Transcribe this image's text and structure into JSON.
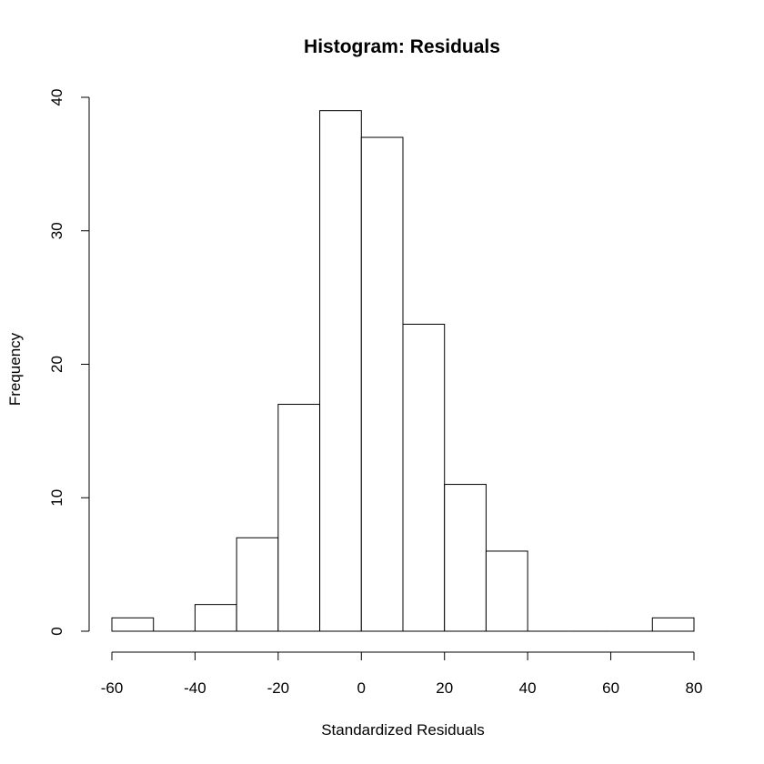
{
  "chart_data": {
    "type": "bar",
    "title": "Histogram: Residuals",
    "xlabel": "Standardized Residuals",
    "ylabel": "Frequency",
    "bins": [
      {
        "start": -60,
        "end": -50,
        "count": 1
      },
      {
        "start": -50,
        "end": -40,
        "count": 0
      },
      {
        "start": -40,
        "end": -30,
        "count": 2
      },
      {
        "start": -30,
        "end": -20,
        "count": 7
      },
      {
        "start": -20,
        "end": -10,
        "count": 17
      },
      {
        "start": -10,
        "end": 0,
        "count": 39
      },
      {
        "start": 0,
        "end": 10,
        "count": 37
      },
      {
        "start": 10,
        "end": 20,
        "count": 23
      },
      {
        "start": 20,
        "end": 30,
        "count": 11
      },
      {
        "start": 30,
        "end": 40,
        "count": 6
      },
      {
        "start": 40,
        "end": 50,
        "count": 0
      },
      {
        "start": 50,
        "end": 60,
        "count": 0
      },
      {
        "start": 60,
        "end": 70,
        "count": 0
      },
      {
        "start": 70,
        "end": 80,
        "count": 1
      }
    ],
    "xlim": [
      -60,
      80
    ],
    "ylim": [
      0,
      40
    ],
    "x_ticks": [
      -60,
      -40,
      -20,
      0,
      20,
      40,
      60,
      80
    ],
    "x_tick_labels": [
      "-60",
      "-40",
      "-20",
      "0",
      "20",
      "40",
      "60",
      "80"
    ],
    "y_ticks": [
      0,
      10,
      20,
      30,
      40
    ],
    "y_tick_labels": [
      "0",
      "10",
      "20",
      "30",
      "40"
    ],
    "grid": false,
    "legend": "none",
    "bar_fill": "#ffffff",
    "bar_stroke": "#000000"
  }
}
